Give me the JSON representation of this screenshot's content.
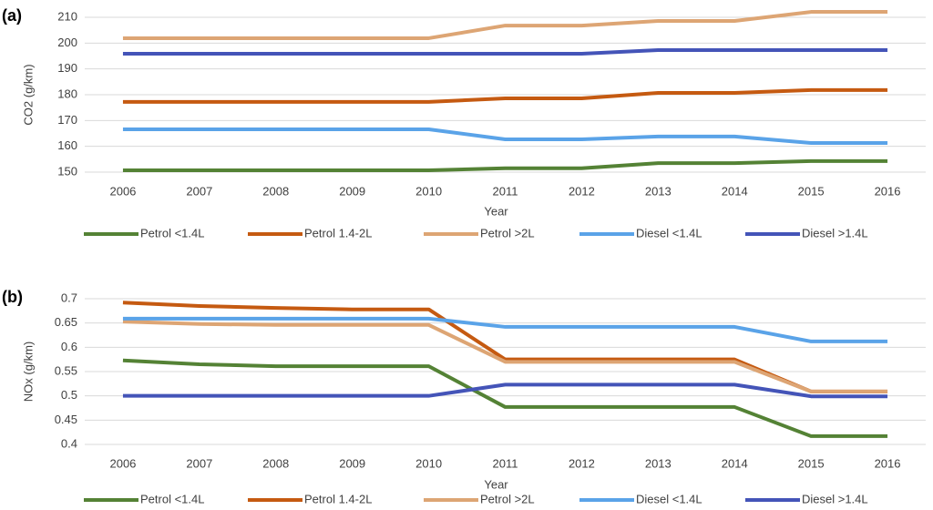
{
  "chart_data": [
    {
      "type": "line",
      "label": "(a)",
      "x_label": "Year",
      "y_label": "CO2 (g/km)",
      "categories": [
        "2006",
        "2007",
        "2008",
        "2009",
        "2010",
        "2011",
        "2012",
        "2013",
        "2014",
        "2015",
        "2016"
      ],
      "ylim": [
        150,
        210
      ],
      "yticks": [
        150,
        160,
        170,
        180,
        190,
        200,
        210
      ],
      "grid": true,
      "legend": "bottom",
      "series": [
        {
          "name": "Petrol <1.4L",
          "color": "#548235",
          "values": [
            150.7,
            150.7,
            150.7,
            150.7,
            150.7,
            151.5,
            151.5,
            153.5,
            153.5,
            154.3,
            154.3
          ]
        },
        {
          "name": "Petrol 1.4-2L",
          "color": "#c55a11",
          "values": [
            177.2,
            177.2,
            177.2,
            177.2,
            177.2,
            178.6,
            178.6,
            180.7,
            180.7,
            181.8,
            181.8
          ]
        },
        {
          "name": "Petrol >2L",
          "color": "#dda574",
          "values": [
            201.9,
            201.9,
            201.9,
            201.9,
            201.9,
            206.8,
            206.8,
            208.6,
            208.6,
            212.1,
            212.1
          ]
        },
        {
          "name": "Diesel <1.4L",
          "color": "#5aa3e8",
          "values": [
            166.6,
            166.6,
            166.6,
            166.6,
            166.6,
            162.7,
            162.7,
            163.8,
            163.8,
            161.3,
            161.3
          ]
        },
        {
          "name": "Diesel >1.4L",
          "color": "#4454b8",
          "values": [
            195.9,
            195.9,
            195.9,
            195.9,
            195.9,
            195.9,
            195.9,
            197.3,
            197.3,
            197.3,
            197.3
          ]
        }
      ]
    },
    {
      "type": "line",
      "label": "(b)",
      "x_label": "Year",
      "y_label": "NOx (g/km)",
      "categories": [
        "2006",
        "2007",
        "2008",
        "2009",
        "2010",
        "2011",
        "2012",
        "2013",
        "2014",
        "2015",
        "2016"
      ],
      "ylim": [
        0.4,
        0.7
      ],
      "yticks": [
        0.4,
        0.45,
        0.5,
        0.55,
        0.6,
        0.65,
        0.7
      ],
      "grid": true,
      "legend": "bottom",
      "series": [
        {
          "name": "Petrol <1.4L",
          "color": "#548235",
          "values": [
            0.573,
            0.565,
            0.561,
            0.561,
            0.561,
            0.477,
            0.477,
            0.477,
            0.477,
            0.417,
            0.417
          ]
        },
        {
          "name": "Petrol 1.4-2L",
          "color": "#c55a11",
          "values": [
            0.692,
            0.685,
            0.681,
            0.678,
            0.678,
            0.575,
            0.575,
            0.575,
            0.575,
            0.509,
            0.509
          ]
        },
        {
          "name": "Petrol >2L",
          "color": "#dda574",
          "values": [
            0.653,
            0.648,
            0.646,
            0.646,
            0.646,
            0.57,
            0.57,
            0.57,
            0.57,
            0.509,
            0.509
          ]
        },
        {
          "name": "Diesel <1.4L",
          "color": "#5aa3e8",
          "values": [
            0.659,
            0.659,
            0.659,
            0.659,
            0.659,
            0.642,
            0.642,
            0.642,
            0.642,
            0.612,
            0.612
          ]
        },
        {
          "name": "Diesel >1.4L",
          "color": "#4454b8",
          "values": [
            0.5,
            0.5,
            0.5,
            0.5,
            0.5,
            0.523,
            0.523,
            0.523,
            0.523,
            0.499,
            0.499
          ]
        }
      ]
    }
  ]
}
